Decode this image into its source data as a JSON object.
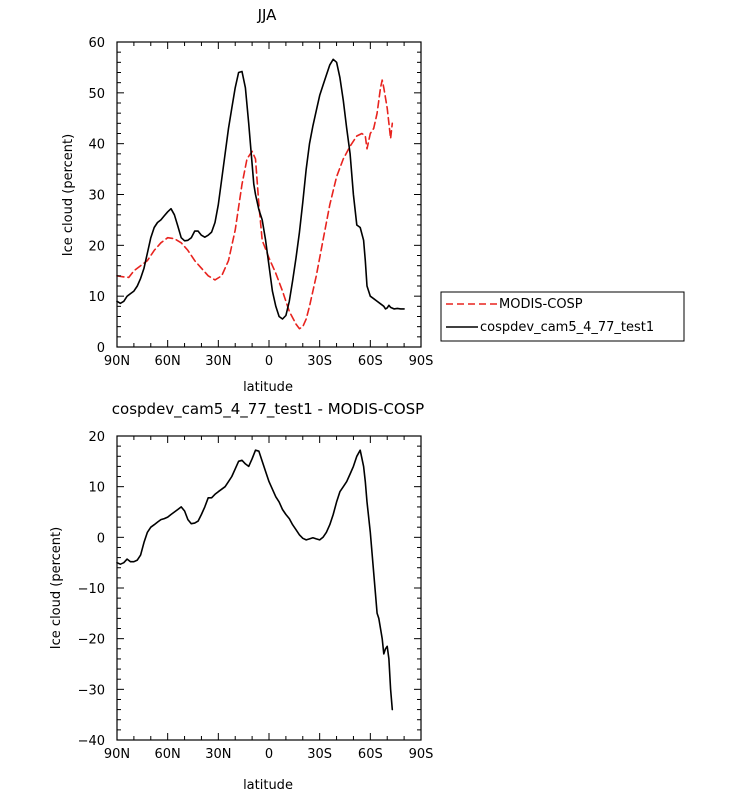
{
  "chart_data": [
    {
      "type": "line",
      "title": "JJA",
      "xlabel": "latitude",
      "ylabel": "Ice cloud (percent)",
      "xlim": [
        90,
        -90
      ],
      "ylim": [
        0,
        60
      ],
      "x_ticks": [
        90,
        60,
        30,
        0,
        -30,
        -60,
        -90
      ],
      "x_tick_labels": [
        "90N",
        "60N",
        "30N",
        "0",
        "30S",
        "60S",
        "90S"
      ],
      "y_ticks": [
        0,
        10,
        20,
        30,
        40,
        50,
        60
      ],
      "y_tick_labels": [
        "0",
        "10",
        "20",
        "30",
        "40",
        "50",
        "60"
      ],
      "grid": false,
      "legend_position": "right",
      "series": [
        {
          "name": "MODIS-COSP",
          "color": "#e8231e",
          "dash": true,
          "x": [
            90,
            86,
            83,
            80,
            76,
            72,
            68,
            64,
            60,
            56,
            52,
            48,
            44,
            40,
            36,
            32,
            28,
            24,
            20,
            16,
            13,
            10,
            8,
            6,
            4,
            0,
            -4,
            -8,
            -12,
            -16,
            -18,
            -20,
            -22,
            -24,
            -28,
            -32,
            -36,
            -40,
            -44,
            -48,
            -52,
            -55,
            -57,
            -58,
            -60,
            -62,
            -64,
            -66,
            -67,
            -68,
            -70,
            -71,
            -72,
            -73
          ],
          "values": [
            14,
            13.8,
            13.7,
            15,
            16,
            17,
            19,
            20.5,
            21.5,
            21.3,
            20.5,
            19,
            17,
            15.5,
            14,
            13.2,
            14,
            17,
            23,
            32,
            37,
            38.5,
            37,
            28,
            21,
            17.5,
            14.5,
            11,
            7,
            4.5,
            3.6,
            4,
            5.5,
            8,
            14,
            21,
            28,
            33.5,
            37,
            39.5,
            41.5,
            42,
            41.5,
            39,
            42,
            43,
            46,
            51,
            52.5,
            51,
            47,
            44,
            41,
            44
          ]
        },
        {
          "name": "cospdev_cam5_4_77_test1",
          "color": "#000000",
          "dash": false,
          "x": [
            90,
            88,
            86,
            84,
            82,
            80,
            78,
            76,
            74,
            72,
            70,
            68,
            66,
            64,
            62,
            60,
            58,
            56,
            54,
            52,
            50,
            48,
            46,
            44,
            42,
            40,
            38,
            36,
            34,
            32,
            30,
            28,
            26,
            24,
            22,
            20,
            18,
            16,
            14,
            12,
            10,
            9,
            8,
            7,
            6,
            4,
            2,
            0,
            -2,
            -4,
            -6,
            -8,
            -10,
            -12,
            -14,
            -16,
            -18,
            -20,
            -22,
            -24,
            -26,
            -28,
            -30,
            -32,
            -34,
            -36,
            -38,
            -40,
            -42,
            -44,
            -46,
            -48,
            -50,
            -52,
            -54,
            -56,
            -57,
            -58,
            -60,
            -62,
            -64,
            -66,
            -68,
            -69,
            -70,
            -71,
            -72,
            -74,
            -76,
            -78,
            -80
          ],
          "values": [
            9,
            8.6,
            9,
            10,
            10.5,
            11,
            12,
            13.5,
            15.5,
            18.5,
            21.5,
            23.5,
            24.5,
            25,
            25.8,
            26.6,
            27.2,
            26,
            23.8,
            21.5,
            20.9,
            21,
            21.5,
            22.8,
            22.8,
            22,
            21.6,
            22,
            22.6,
            24.5,
            28,
            33,
            38,
            43,
            47,
            51,
            54,
            54.2,
            51,
            44,
            36,
            32,
            30,
            28.5,
            27,
            25,
            21,
            16,
            11,
            8,
            6,
            5.5,
            6.2,
            9,
            13,
            17.5,
            22.5,
            28.5,
            35,
            40,
            43.5,
            46.5,
            49.5,
            51.5,
            53.5,
            55.5,
            56.6,
            56,
            53,
            48.5,
            43,
            38,
            30,
            24,
            23.5,
            21,
            17,
            12,
            10,
            9.5,
            9,
            8.5,
            8,
            7.5,
            7.7,
            8.2,
            7.8,
            7.5,
            7.6,
            7.5,
            7.5
          ]
        }
      ]
    },
    {
      "type": "line",
      "title": "cospdev_cam5_4_77_test1 - MODIS-COSP",
      "xlabel": "latitude",
      "ylabel": "Ice cloud (percent)",
      "xlim": [
        90,
        -90
      ],
      "ylim": [
        -40,
        20
      ],
      "x_ticks": [
        90,
        60,
        30,
        0,
        -30,
        -60,
        -90
      ],
      "x_tick_labels": [
        "90N",
        "60N",
        "30N",
        "0",
        "30S",
        "60S",
        "90S"
      ],
      "y_ticks": [
        -40,
        -30,
        -20,
        -10,
        0,
        10,
        20
      ],
      "y_tick_labels": [
        "−40",
        "−30",
        "−20",
        "−10",
        "0",
        "10",
        "20"
      ],
      "grid": false,
      "series": [
        {
          "name": "",
          "color": "#000000",
          "dash": false,
          "x": [
            90,
            88,
            86,
            84,
            82,
            80,
            78,
            76,
            74,
            72,
            70,
            68,
            66,
            64,
            62,
            60,
            58,
            56,
            54,
            52,
            50,
            48,
            46,
            44,
            42,
            40,
            38,
            36,
            34,
            32,
            30,
            28,
            26,
            24,
            22,
            20,
            18,
            16,
            14,
            12,
            10,
            8,
            6,
            4,
            2,
            0,
            -2,
            -4,
            -6,
            -8,
            -10,
            -12,
            -14,
            -16,
            -18,
            -20,
            -22,
            -24,
            -26,
            -28,
            -30,
            -32,
            -34,
            -36,
            -38,
            -40,
            -42,
            -44,
            -46,
            -48,
            -50,
            -52,
            -54,
            -56,
            -57,
            -58,
            -60,
            -62,
            -63,
            -64,
            -65,
            -66,
            -67,
            -68,
            -69,
            -70,
            -71,
            -72,
            -73
          ],
          "values": [
            -5,
            -5.3,
            -5,
            -4.3,
            -4.8,
            -4.8,
            -4.5,
            -3.5,
            -1,
            1,
            2,
            2.5,
            3,
            3.5,
            3.7,
            4,
            4.5,
            5,
            5.5,
            6,
            5.2,
            3.5,
            2.7,
            2.8,
            3.2,
            4.5,
            6,
            7.8,
            7.8,
            8.5,
            9,
            9.5,
            10,
            11,
            12,
            13.5,
            15,
            15.2,
            14.5,
            14,
            15.5,
            17.2,
            17,
            15,
            13,
            11,
            9.5,
            8,
            7,
            5.5,
            4.5,
            3.7,
            2.5,
            1.5,
            0.5,
            -0.2,
            -0.5,
            -0.3,
            -0.1,
            -0.3,
            -0.5,
            0,
            1,
            2.5,
            4.5,
            7,
            9,
            10,
            11,
            12.5,
            14,
            16,
            17.2,
            14,
            11,
            7,
            1,
            -7,
            -11,
            -15,
            -16,
            -18,
            -20,
            -23,
            -22,
            -21.5,
            -24,
            -30,
            -34
          ]
        }
      ]
    }
  ]
}
